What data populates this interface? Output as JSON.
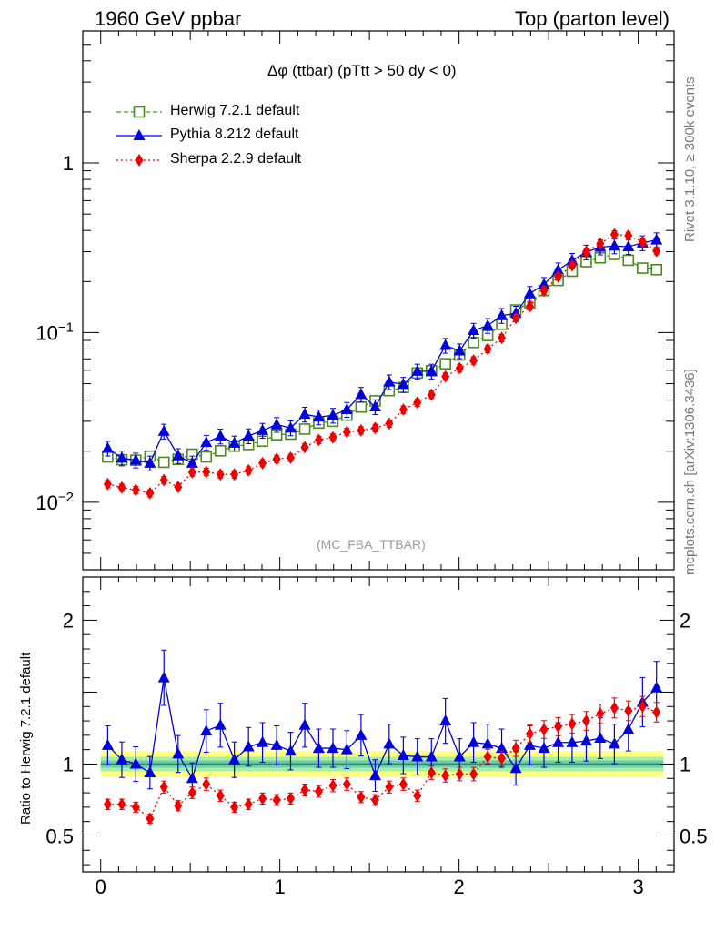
{
  "header": {
    "left": "1960 GeV ppbar",
    "right": "Top (parton level)"
  },
  "side_text": {
    "rivet": "Rivet 3.1.10, ≥ 300k events",
    "mcplots": "mcplots.cern.ch [arXiv:1306.3436]"
  },
  "plot_title": "Δφ (ttbar) (pTtt > 50 dy < 0)",
  "analysis_tag": "(MC_FBA_TTBAR)",
  "ratio_ylabel": "Ratio to Herwig 7.2.1 default",
  "legend": [
    {
      "label": "Herwig 7.2.1 default",
      "color": "#4a8a1e",
      "marker": "open-square",
      "line": "dashed"
    },
    {
      "label": "Pythia 8.212 default",
      "color": "#0000dd",
      "marker": "filled-triangle",
      "line": "solid"
    },
    {
      "label": "Sherpa 2.2.9 default",
      "color": "#ee0000",
      "marker": "filled-diamond",
      "line": "dotted"
    }
  ],
  "chart_data": [
    {
      "type": "line",
      "panel": "main",
      "yscale": "log",
      "xlim": [
        -0.1,
        3.2
      ],
      "ylim": [
        0.004,
        6.0
      ],
      "y_tick_labels": [
        "10^-2",
        "10^-1",
        "1"
      ],
      "x": [
        0.039,
        0.118,
        0.196,
        0.275,
        0.353,
        0.432,
        0.511,
        0.589,
        0.668,
        0.746,
        0.825,
        0.903,
        0.982,
        1.06,
        1.139,
        1.217,
        1.296,
        1.374,
        1.453,
        1.532,
        1.61,
        1.689,
        1.767,
        1.846,
        1.924,
        2.003,
        2.081,
        2.16,
        2.238,
        2.317,
        2.395,
        2.474,
        2.553,
        2.631,
        2.71,
        2.788,
        2.867,
        2.945,
        3.024,
        3.102
      ],
      "series": [
        {
          "name": "Herwig 7.2.1 default",
          "values": [
            0.0185,
            0.0178,
            0.0177,
            0.0187,
            0.0172,
            0.0179,
            0.0192,
            0.0185,
            0.0201,
            0.0214,
            0.0219,
            0.0229,
            0.025,
            0.0252,
            0.027,
            0.0293,
            0.03,
            0.0326,
            0.0364,
            0.0396,
            0.0455,
            0.0475,
            0.0578,
            0.0596,
            0.0655,
            0.0738,
            0.0875,
            0.096,
            0.112,
            0.136,
            0.15,
            0.177,
            0.203,
            0.23,
            0.262,
            0.276,
            0.289,
            0.267,
            0.24,
            0.235
          ]
        },
        {
          "name": "Pythia 8.212 default",
          "values": [
            0.0208,
            0.0182,
            0.0177,
            0.017,
            0.0262,
            0.0188,
            0.017,
            0.0225,
            0.0245,
            0.0223,
            0.0246,
            0.0265,
            0.0287,
            0.0274,
            0.033,
            0.0318,
            0.0325,
            0.0352,
            0.0432,
            0.0365,
            0.0512,
            0.0495,
            0.0592,
            0.0592,
            0.084,
            0.078,
            0.103,
            0.11,
            0.126,
            0.13,
            0.17,
            0.192,
            0.234,
            0.266,
            0.298,
            0.319,
            0.324,
            0.321,
            0.338,
            0.352
          ]
        },
        {
          "name": "Sherpa 2.2.9 default",
          "values": [
            0.0128,
            0.0122,
            0.0118,
            0.0113,
            0.0135,
            0.0123,
            0.015,
            0.0151,
            0.0146,
            0.0146,
            0.0154,
            0.017,
            0.018,
            0.0183,
            0.0211,
            0.0233,
            0.0241,
            0.026,
            0.0265,
            0.0274,
            0.0291,
            0.0351,
            0.0387,
            0.043,
            0.0551,
            0.0617,
            0.0685,
            0.0801,
            0.093,
            0.122,
            0.143,
            0.177,
            0.214,
            0.249,
            0.3,
            0.335,
            0.379,
            0.373,
            0.343,
            0.303
          ]
        }
      ]
    },
    {
      "type": "line",
      "panel": "ratio",
      "yscale": "linear",
      "xlim": [
        -0.1,
        3.2
      ],
      "ylim": [
        0.25,
        2.3
      ],
      "y_tick_labels": [
        "0.5",
        "1",
        "2"
      ],
      "x_tick_labels": [
        "0",
        "1",
        "2",
        "3"
      ],
      "band": {
        "inner_halfwidth": 0.025,
        "outer_halfwidth": 0.05
      },
      "x": [
        0.039,
        0.118,
        0.196,
        0.275,
        0.353,
        0.432,
        0.511,
        0.589,
        0.668,
        0.746,
        0.825,
        0.903,
        0.982,
        1.06,
        1.139,
        1.217,
        1.296,
        1.374,
        1.453,
        1.532,
        1.61,
        1.689,
        1.767,
        1.846,
        1.924,
        2.003,
        2.081,
        2.16,
        2.238,
        2.317,
        2.395,
        2.474,
        2.553,
        2.631,
        2.71,
        2.788,
        2.867,
        2.945,
        3.024,
        3.102
      ],
      "series": [
        {
          "name": "Pythia 8.212 default",
          "values": [
            1.13,
            1.03,
            1.0,
            0.94,
            1.6,
            1.07,
            0.9,
            1.23,
            1.27,
            1.03,
            1.12,
            1.15,
            1.13,
            1.09,
            1.27,
            1.11,
            1.11,
            1.1,
            1.2,
            0.92,
            1.14,
            1.06,
            1.05,
            1.05,
            1.3,
            1.05,
            1.15,
            1.14,
            1.11,
            0.97,
            1.13,
            1.11,
            1.15,
            1.15,
            1.16,
            1.18,
            1.14,
            1.24,
            1.43,
            1.53
          ]
        },
        {
          "name": "Sherpa 2.2.9 default",
          "values": [
            0.72,
            0.72,
            0.7,
            0.62,
            0.84,
            0.71,
            0.8,
            0.86,
            0.78,
            0.7,
            0.72,
            0.76,
            0.75,
            0.76,
            0.82,
            0.81,
            0.85,
            0.86,
            0.77,
            0.75,
            0.84,
            0.86,
            0.78,
            0.94,
            0.92,
            0.93,
            0.93,
            1.05,
            1.04,
            1.11,
            1.21,
            1.24,
            1.26,
            1.28,
            1.3,
            1.35,
            1.39,
            1.37,
            1.4,
            1.36
          ]
        }
      ]
    }
  ]
}
